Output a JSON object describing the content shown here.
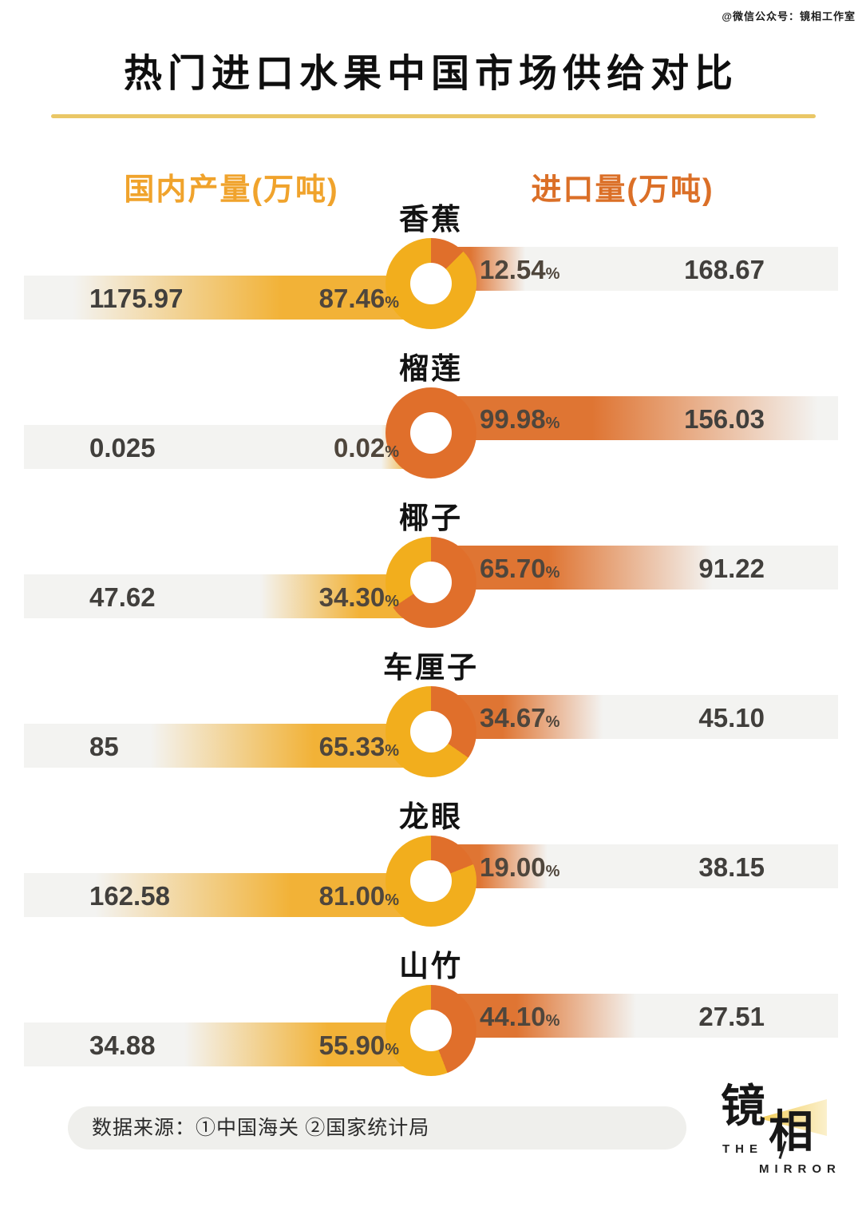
{
  "watermark": "@微信公众号：镜相工作室",
  "title": "热门进口水果中国市场供给对比",
  "legend": {
    "domestic_label": "国内产量(万吨)",
    "import_label": "进口量(万吨)"
  },
  "colors": {
    "title_rule": "#EAC766",
    "header_domestic": "#F0A32C",
    "header_import": "#DB6F27",
    "bar_bg": "#F3F3F1",
    "bar_domestic": "#F2B237",
    "bar_import": "#DF7533",
    "donut_domestic": "#F2AE1D",
    "donut_import": "#E06F2B",
    "value_text": "#413f3c",
    "pct_text": "#4f463c",
    "beam_left": "#F2CC55",
    "beam_right": "#FBF0CC"
  },
  "chart_data": {
    "type": "pie",
    "title": "热门进口水果中国市场供给对比",
    "series_labels": {
      "domestic": "国内产量(万吨)",
      "import": "进口量(万吨)"
    },
    "unit": "万吨",
    "rows": [
      {
        "fruit": "香蕉",
        "domestic_value": "1175.97",
        "domestic_pct": 87.46,
        "import_value": "168.67",
        "import_pct": 12.54
      },
      {
        "fruit": "榴莲",
        "domestic_value": "0.025",
        "domestic_pct": 0.02,
        "import_value": "156.03",
        "import_pct": 99.98
      },
      {
        "fruit": "椰子",
        "domestic_value": "47.62",
        "domestic_pct": 34.3,
        "import_value": "91.22",
        "import_pct": 65.7
      },
      {
        "fruit": "车厘子",
        "domestic_value": "85",
        "domestic_pct": 65.33,
        "import_value": "45.10",
        "import_pct": 34.67
      },
      {
        "fruit": "龙眼",
        "domestic_value": "162.58",
        "domestic_pct": 81.0,
        "import_value": "38.15",
        "import_pct": 19.0
      },
      {
        "fruit": "山竹",
        "domestic_value": "34.88",
        "domestic_pct": 55.9,
        "import_value": "27.51",
        "import_pct": 44.1
      }
    ]
  },
  "footer": {
    "source": "数据来源：①中国海关 ②国家统计局"
  },
  "logo": {
    "zh_char_1": "镜",
    "zh_char_2": "相",
    "en_line_1": "THE",
    "en_line_2": "MIRROR"
  }
}
